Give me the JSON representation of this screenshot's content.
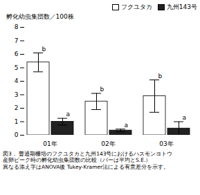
{
  "chart_data": {
    "type": "bar",
    "categories": [
      "01年",
      "02年",
      "03年"
    ],
    "series": [
      {
        "name": "フクユタカ",
        "color": "white",
        "values": [
          5.4,
          2.5,
          2.9
        ],
        "errors": [
          0.7,
          0.6,
          1.2
        ],
        "annotations": [
          "b",
          "b",
          "b"
        ]
      },
      {
        "name": "九州143号",
        "color": "#222222",
        "values": [
          1.0,
          0.35,
          0.5
        ],
        "errors": [
          0.25,
          0.1,
          0.5
        ],
        "annotations": [
          "a",
          "a",
          "a"
        ]
      }
    ],
    "ylabel": "孵化幼虫集団数／100株",
    "ylim": [
      0,
      8
    ],
    "yticks": [
      0,
      1,
      2,
      3,
      4,
      5,
      6,
      7,
      8
    ],
    "grid": false,
    "legend": "upper right",
    "caption": [
      "図3． 普通期栅培のフクユタカと九州143号におけるハスモンヨトウ",
      "産卵ピーク時の孵化幼虫集団数の比較（バーは平均とS.E.）",
      "異なる添え字はANOVA後 Tukey-Kramer法による有意差分を示す。"
    ]
  }
}
